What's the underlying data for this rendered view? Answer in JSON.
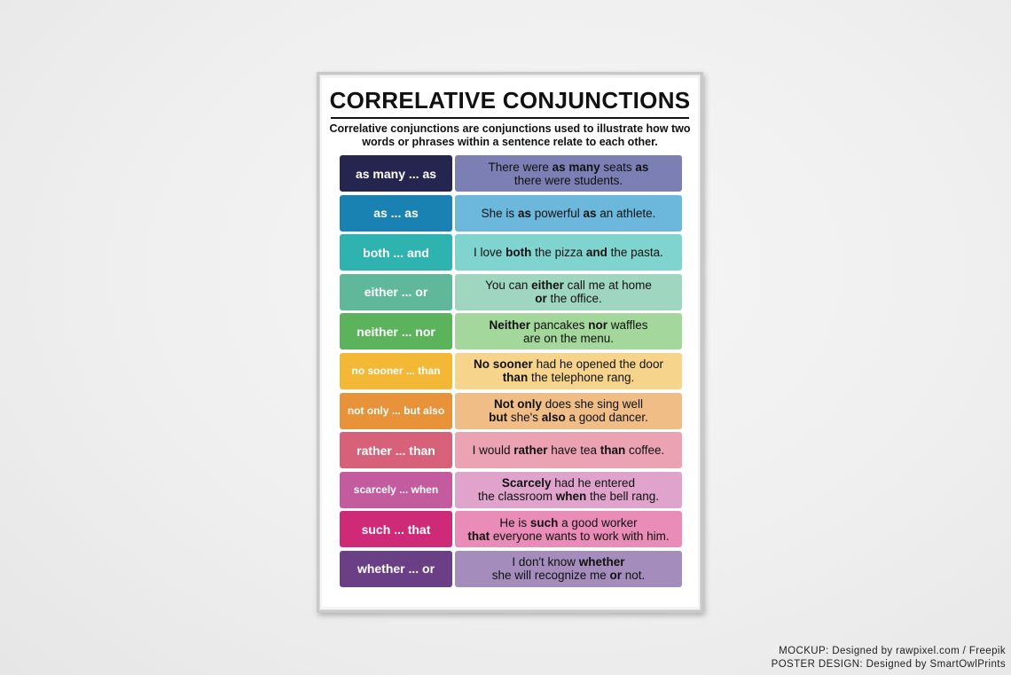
{
  "poster": {
    "title": "CORRELATIVE CONJUNCTIONS",
    "subtitle": "Correlative conjunctions are conjunctions used to illustrate how two words or phrases within a sentence relate to each other.",
    "rows": [
      {
        "term": "as many ... as",
        "term_color": "#25264f",
        "example_color": "#7b7fb4",
        "lines": [
          [
            {
              "t": "There were "
            },
            {
              "t": "as many",
              "b": true
            },
            {
              "t": " seats "
            },
            {
              "t": "as",
              "b": true
            }
          ],
          [
            {
              "t": "there were students."
            }
          ]
        ]
      },
      {
        "term": "as ... as",
        "term_color": "#1a82b3",
        "example_color": "#6cb7dc",
        "lines": [
          [
            {
              "t": "She is "
            },
            {
              "t": "as",
              "b": true
            },
            {
              "t": " powerful "
            },
            {
              "t": "as",
              "b": true
            },
            {
              "t": " an athlete."
            }
          ]
        ]
      },
      {
        "term": "both ... and",
        "term_color": "#2fb3b0",
        "example_color": "#80d4d0",
        "lines": [
          [
            {
              "t": "I love "
            },
            {
              "t": "both",
              "b": true
            },
            {
              "t": " the pizza "
            },
            {
              "t": "and",
              "b": true
            },
            {
              "t": " the pasta."
            }
          ]
        ]
      },
      {
        "term": "either ... or",
        "term_color": "#5fb89a",
        "example_color": "#9fd6c0",
        "lines": [
          [
            {
              "t": "You can "
            },
            {
              "t": "either",
              "b": true
            },
            {
              "t": " call me at home"
            }
          ],
          [
            {
              "t": "or",
              "b": true
            },
            {
              "t": " the office."
            }
          ]
        ]
      },
      {
        "term": "neither ... nor",
        "term_color": "#5bb35c",
        "example_color": "#a3d79b",
        "lines": [
          [
            {
              "t": "Neither",
              "b": true
            },
            {
              "t": " pancakes "
            },
            {
              "t": "nor",
              "b": true
            },
            {
              "t": " waffles"
            }
          ],
          [
            {
              "t": "are on the menu."
            }
          ]
        ]
      },
      {
        "term": "no sooner ... than",
        "term_color": "#f2b836",
        "example_color": "#f6d48c",
        "lines": [
          [
            {
              "t": "No sooner",
              "b": true
            },
            {
              "t": " had he opened the door"
            }
          ],
          [
            {
              "t": "than",
              "b": true
            },
            {
              "t": " the telephone rang."
            }
          ]
        ]
      },
      {
        "term": "not only ... but also",
        "term_color": "#e8923a",
        "example_color": "#efbd85",
        "lines": [
          [
            {
              "t": "Not only",
              "b": true
            },
            {
              "t": " does she sing well"
            }
          ],
          [
            {
              "t": "but",
              "b": true
            },
            {
              "t": " she's "
            },
            {
              "t": "also",
              "b": true
            },
            {
              "t": " a good dancer."
            }
          ]
        ]
      },
      {
        "term": "rather ... than",
        "term_color": "#d8617a",
        "example_color": "#eba2b2",
        "lines": [
          [
            {
              "t": "I would "
            },
            {
              "t": "rather",
              "b": true
            },
            {
              "t": " have tea "
            },
            {
              "t": "than",
              "b": true
            },
            {
              "t": " coffee."
            }
          ]
        ]
      },
      {
        "term": "scarcely ... when",
        "term_color": "#c45b9e",
        "example_color": "#e0a4cc",
        "lines": [
          [
            {
              "t": "Scarcely",
              "b": true
            },
            {
              "t": " had he entered"
            }
          ],
          [
            {
              "t": "the classroom "
            },
            {
              "t": "when",
              "b": true
            },
            {
              "t": " the bell rang."
            }
          ]
        ]
      },
      {
        "term": "such ... that",
        "term_color": "#cf2a78",
        "example_color": "#e98cb8",
        "lines": [
          [
            {
              "t": "He is "
            },
            {
              "t": "such",
              "b": true
            },
            {
              "t": " a good worker"
            }
          ],
          [
            {
              "t": "that",
              "b": true
            },
            {
              "t": " everyone wants to work with him."
            }
          ]
        ]
      },
      {
        "term": "whether ... or",
        "term_color": "#6b3f85",
        "example_color": "#a48cbc",
        "lines": [
          [
            {
              "t": "I don't know "
            },
            {
              "t": "whether",
              "b": true
            }
          ],
          [
            {
              "t": "she will recognize me "
            },
            {
              "t": "or",
              "b": true
            },
            {
              "t": " not."
            }
          ]
        ]
      }
    ]
  },
  "credits": {
    "line1": "MOCKUP: Designed by rawpixel.com / Freepik",
    "line2": "POSTER DESIGN: Designed by SmartOwlPrints"
  }
}
